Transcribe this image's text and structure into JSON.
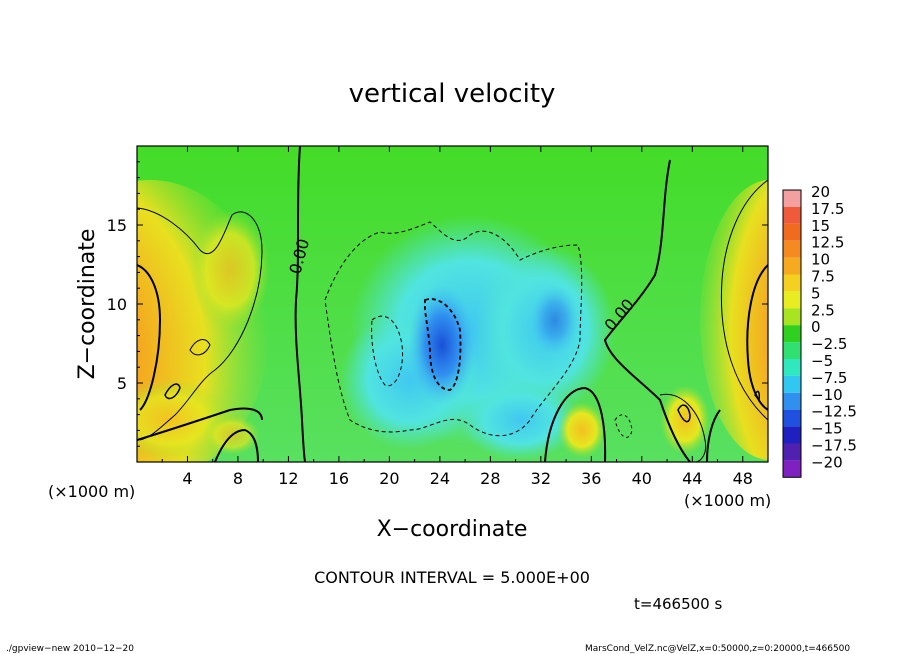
{
  "chart_data": {
    "type": "heatmap",
    "title": "vertical velocity",
    "xlabel": "X−coordinate",
    "ylabel": "Z−coordinate",
    "x_unit_left": "(×1000 m)",
    "x_unit_right": "(×1000 m)",
    "xlim": [
      0,
      50
    ],
    "ylim": [
      0,
      20
    ],
    "xticks": [
      "4",
      "8",
      "12",
      "16",
      "20",
      "24",
      "28",
      "32",
      "36",
      "40",
      "44",
      "48"
    ],
    "yticks": [
      "5",
      "10",
      "15"
    ],
    "colorbar": {
      "levels": [
        "20",
        "17.5",
        "15",
        "12.5",
        "10",
        "7.5",
        "5",
        "2.5",
        "0",
        "−2.5",
        "−5",
        "−7.5",
        "−10",
        "−12.5",
        "−15",
        "−17.5",
        "−20"
      ],
      "colors": [
        "#f5a0a0",
        "#ef5a3a",
        "#f06a20",
        "#f58a20",
        "#f6aa20",
        "#f4d020",
        "#e8ec20",
        "#a8e420",
        "#30d020",
        "#30e070",
        "#30e8c0",
        "#30c8f0",
        "#3090f0",
        "#2050e0",
        "#2020c0",
        "#5020b0",
        "#8020c0"
      ]
    },
    "contour_labels": [
      "0.00",
      "0.00"
    ],
    "contour_interval_text": "CONTOUR INTERVAL = 5.000E+00",
    "time_text": "t=466500 s",
    "footer_left": "./gpview−new  2010−12−20",
    "footer_right": "MarsCond_VelZ.nc@VelZ,x=0:50000,z=0:20000,t=466500"
  }
}
